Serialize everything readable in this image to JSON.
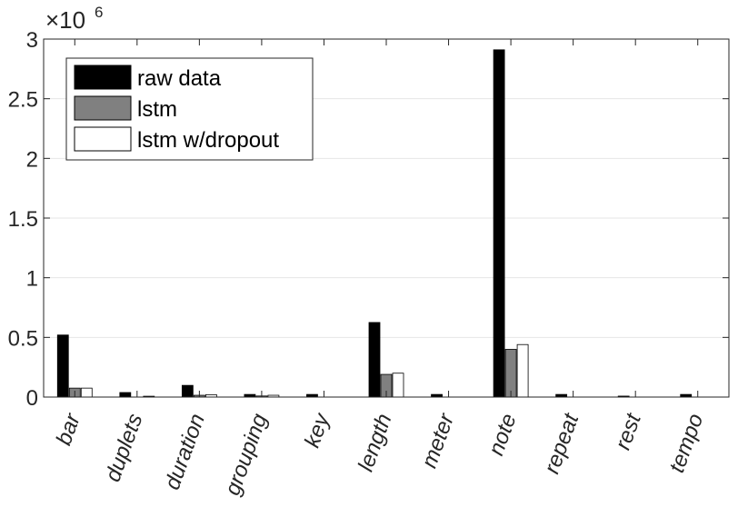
{
  "chart_data": {
    "type": "bar",
    "categories": [
      "bar",
      "duplets",
      "duration",
      "grouping",
      "key",
      "length",
      "meter",
      "note",
      "repeat",
      "rest",
      "tempo"
    ],
    "series": [
      {
        "name": "raw data",
        "color": "#000000",
        "values": [
          520000,
          38000,
          98000,
          22000,
          22000,
          625000,
          22000,
          2910000,
          22000,
          8000,
          22000
        ]
      },
      {
        "name": "lstm",
        "color": "#808080",
        "values": [
          75000,
          0,
          15000,
          9000,
          0,
          190000,
          0,
          400000,
          0,
          0,
          0
        ]
      },
      {
        "name": "lstm w/dropout",
        "color": "#ffffff",
        "values": [
          75000,
          7000,
          20000,
          15000,
          0,
          200000,
          0,
          440000,
          0,
          0,
          0
        ]
      }
    ],
    "yaxis": {
      "ylim": [
        0,
        3000000
      ],
      "ticks": [
        0,
        500000,
        1000000,
        1500000,
        2000000,
        2500000,
        3000000
      ],
      "tick_labels": [
        "0",
        "0.5",
        "1",
        "1.5",
        "2",
        "2.5",
        "3"
      ],
      "exponent_base": "×10",
      "exponent_power": "6"
    },
    "grid": "horizontal",
    "legend_position": "top-left"
  }
}
